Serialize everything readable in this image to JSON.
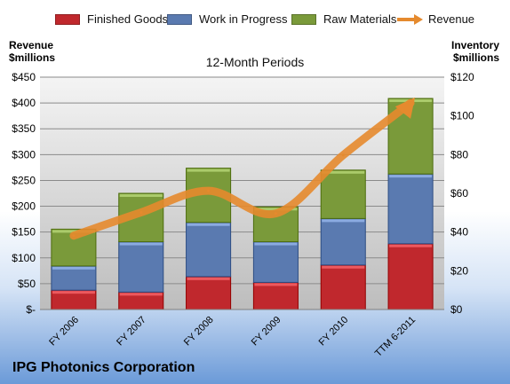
{
  "chart_data": {
    "type": "bar",
    "stacked": true,
    "subtitle": "12-Month Periods",
    "footer_title": "IPG Photonics Corporation",
    "y_left_label": [
      "Revenue",
      "$millions"
    ],
    "y_right_label": [
      "Inventory",
      "$millions"
    ],
    "categories": [
      "FY 2006",
      "FY 2007",
      "FY 2008",
      "FY 2009",
      "FY 2010",
      "TTM 6-2011"
    ],
    "y_left_ticks": [
      "$-",
      "$50",
      "$100",
      "$150",
      "$200",
      "$250",
      "$300",
      "$350",
      "$400",
      "$450"
    ],
    "y_right_ticks": [
      "$0",
      "$20",
      "$40",
      "$60",
      "$80",
      "$100",
      "$120"
    ],
    "ylim_left": [
      0,
      450
    ],
    "ylim_right": [
      0,
      120
    ],
    "grid": true,
    "legend_position": "top",
    "series": [
      {
        "name": "Finished Goods",
        "axis": "right",
        "color": "#c0282d",
        "values": [
          10,
          9,
          17,
          14,
          23,
          34
        ]
      },
      {
        "name": "Work in Progress",
        "axis": "right",
        "color": "#5a7ab0",
        "values": [
          12.5,
          26,
          28,
          21,
          24,
          36
        ]
      },
      {
        "name": "Raw Materials",
        "axis": "right",
        "color": "#7a9a3a",
        "values": [
          19,
          25,
          28,
          18,
          25,
          39
        ]
      },
      {
        "name": "Revenue",
        "axis": "left",
        "type": "line",
        "color": "#e58a2e",
        "values": [
          143,
          188,
          230,
          186,
          299,
          400
        ]
      }
    ]
  }
}
